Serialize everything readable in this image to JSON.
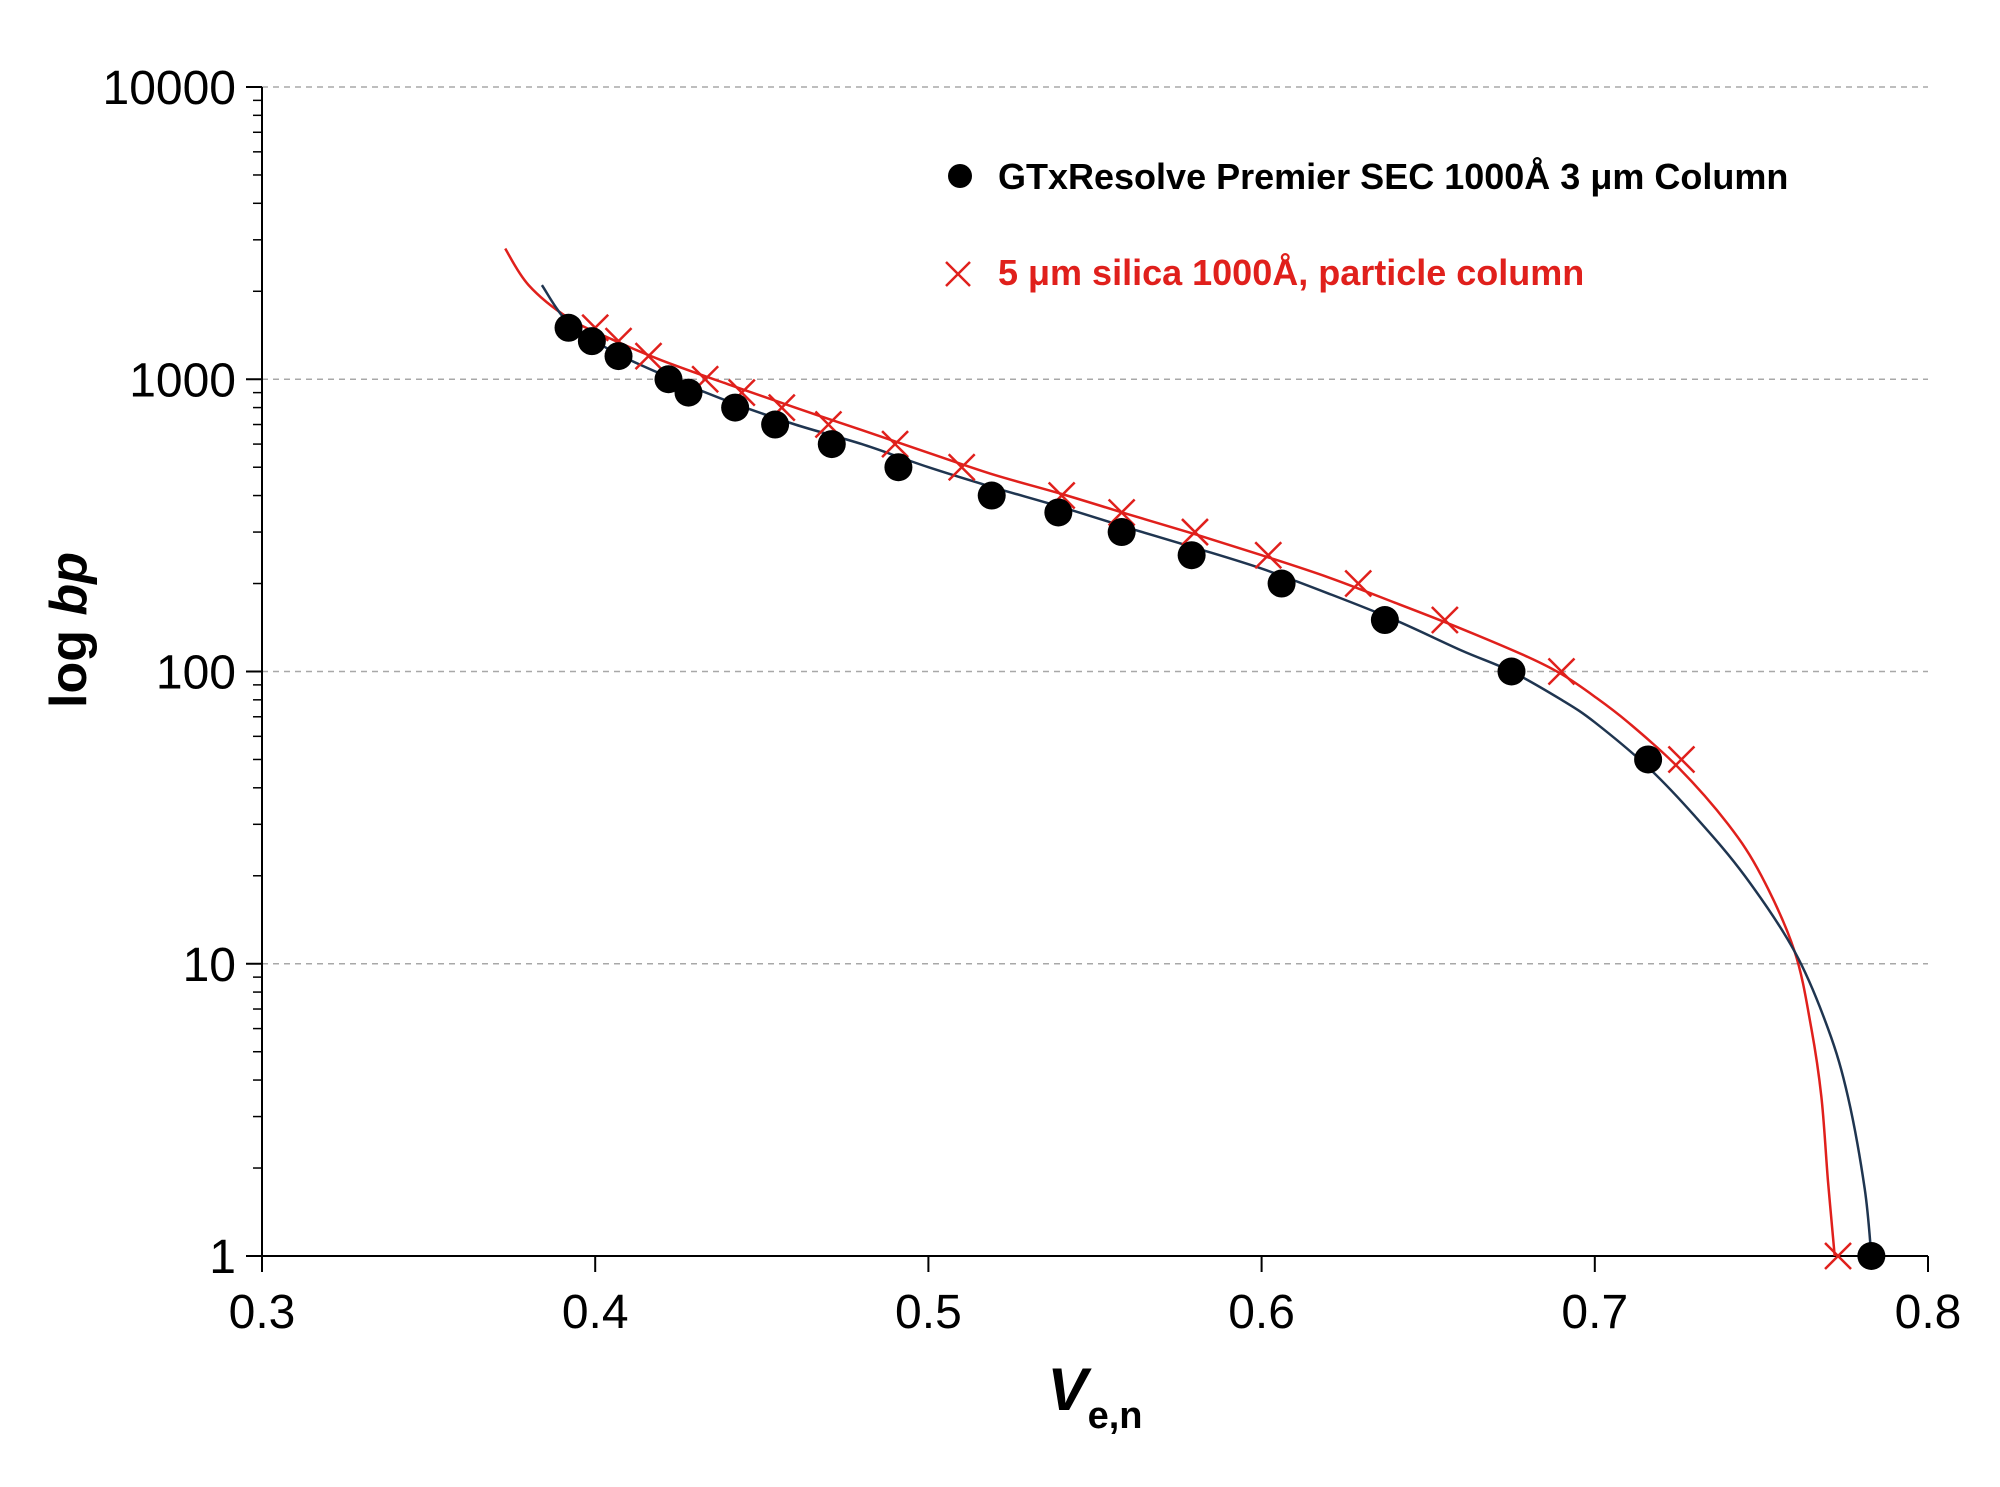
{
  "chart_data": {
    "type": "scatter",
    "xlabel": {
      "main": "V",
      "sub": "e,n"
    },
    "ylabel": {
      "prefix": "log ",
      "emph": "bp"
    },
    "xlim": [
      0.3,
      0.8
    ],
    "ylim": [
      1,
      10000
    ],
    "yscale": "log",
    "x_ticks": [
      "0.3",
      "0.4",
      "0.5",
      "0.6",
      "0.7",
      "0.8"
    ],
    "y_ticks": [
      "1",
      "10",
      "100",
      "1000",
      "10000"
    ],
    "grid": "horizontal dashed",
    "legend_position": "top-right",
    "series": [
      {
        "name": "GTxResolve Premier SEC 1000Å 3 μm Column",
        "marker": "filled-circle",
        "color": "#000000",
        "curve_color": "#1f3550",
        "points": [
          [
            0.392,
            1500
          ],
          [
            0.399,
            1350
          ],
          [
            0.407,
            1200
          ],
          [
            0.422,
            1000
          ],
          [
            0.428,
            900
          ],
          [
            0.442,
            800
          ],
          [
            0.454,
            700
          ],
          [
            0.471,
            600
          ],
          [
            0.491,
            500
          ],
          [
            0.519,
            400
          ],
          [
            0.539,
            350
          ],
          [
            0.558,
            300
          ],
          [
            0.579,
            250
          ],
          [
            0.606,
            200
          ],
          [
            0.637,
            150
          ],
          [
            0.675,
            100
          ],
          [
            0.716,
            50
          ],
          [
            0.783,
            1
          ]
        ],
        "fit_curve": [
          [
            0.384,
            2100
          ],
          [
            0.392,
            1560
          ],
          [
            0.405,
            1250
          ],
          [
            0.42,
            1040
          ],
          [
            0.44,
            840
          ],
          [
            0.46,
            700
          ],
          [
            0.48,
            600
          ],
          [
            0.5,
            500
          ],
          [
            0.52,
            425
          ],
          [
            0.54,
            365
          ],
          [
            0.56,
            310
          ],
          [
            0.58,
            265
          ],
          [
            0.6,
            225
          ],
          [
            0.62,
            185
          ],
          [
            0.64,
            150
          ],
          [
            0.66,
            118
          ],
          [
            0.675,
            100
          ],
          [
            0.69,
            80
          ],
          [
            0.7,
            67
          ],
          [
            0.716,
            47
          ],
          [
            0.73,
            32
          ],
          [
            0.745,
            20
          ],
          [
            0.76,
            11
          ],
          [
            0.77,
            6
          ],
          [
            0.776,
            3.5
          ],
          [
            0.781,
            1.7
          ],
          [
            0.783,
            1
          ]
        ]
      },
      {
        "name": "5 μm silica 1000Å, particle column",
        "marker": "cross",
        "color": "#e0201c",
        "curve_color": "#e0201c",
        "points": [
          [
            0.4,
            1500
          ],
          [
            0.407,
            1350
          ],
          [
            0.416,
            1200
          ],
          [
            0.433,
            1000
          ],
          [
            0.444,
            900
          ],
          [
            0.456,
            800
          ],
          [
            0.47,
            700
          ],
          [
            0.49,
            600
          ],
          [
            0.51,
            500
          ],
          [
            0.54,
            400
          ],
          [
            0.558,
            350
          ],
          [
            0.58,
            300
          ],
          [
            0.602,
            250
          ],
          [
            0.629,
            200
          ],
          [
            0.655,
            150
          ],
          [
            0.69,
            100
          ],
          [
            0.726,
            50
          ],
          [
            0.773,
            1
          ]
        ],
        "fit_curve": [
          [
            0.373,
            2800
          ],
          [
            0.38,
            2100
          ],
          [
            0.392,
            1620
          ],
          [
            0.405,
            1370
          ],
          [
            0.42,
            1160
          ],
          [
            0.44,
            960
          ],
          [
            0.46,
            800
          ],
          [
            0.48,
            670
          ],
          [
            0.5,
            560
          ],
          [
            0.52,
            470
          ],
          [
            0.54,
            405
          ],
          [
            0.56,
            345
          ],
          [
            0.58,
            295
          ],
          [
            0.6,
            250
          ],
          [
            0.62,
            210
          ],
          [
            0.64,
            172
          ],
          [
            0.66,
            140
          ],
          [
            0.68,
            112
          ],
          [
            0.69,
            98
          ],
          [
            0.7,
            82
          ],
          [
            0.71,
            67
          ],
          [
            0.725,
            47
          ],
          [
            0.74,
            30
          ],
          [
            0.75,
            20
          ],
          [
            0.76,
            11
          ],
          [
            0.765,
            6
          ],
          [
            0.768,
            3.5
          ],
          [
            0.77,
            1.8
          ],
          [
            0.772,
            1
          ]
        ]
      }
    ]
  }
}
